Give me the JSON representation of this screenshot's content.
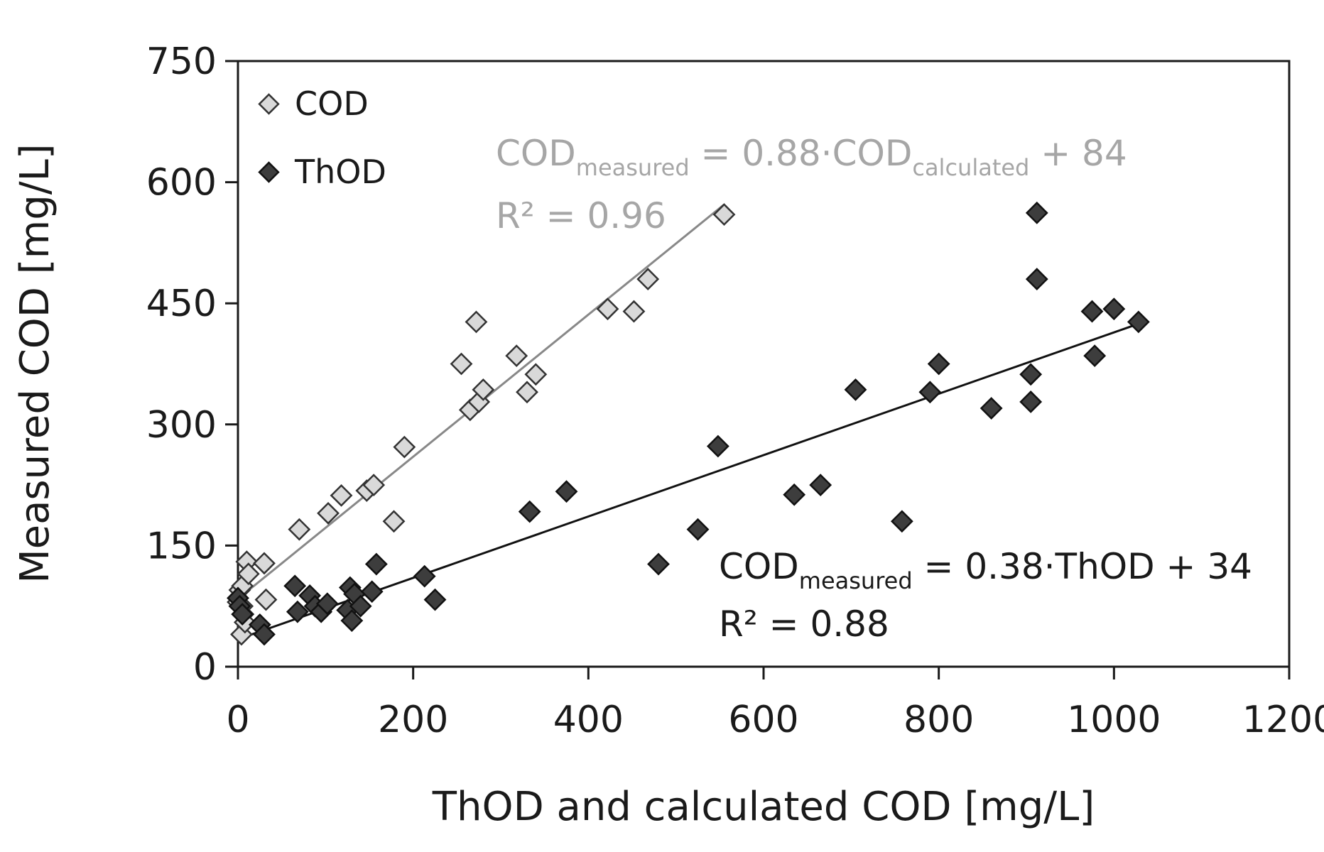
{
  "chart_data": {
    "type": "scatter",
    "xlabel": "ThOD and calculated COD [mg/L]",
    "ylabel": "Measured COD [mg/L]",
    "xlim": [
      0,
      1200
    ],
    "ylim": [
      0,
      750
    ],
    "xticks": [
      0,
      200,
      400,
      600,
      800,
      1000,
      1200
    ],
    "yticks": [
      0,
      150,
      300,
      450,
      600,
      750
    ],
    "grid": false,
    "legend_position": "top-left",
    "series": [
      {
        "name": "COD",
        "marker": "diamond",
        "fill": "#d9d9d9",
        "stroke": "#333333",
        "points": [
          [
            0,
            80
          ],
          [
            2,
            95
          ],
          [
            4,
            40
          ],
          [
            5,
            75
          ],
          [
            6,
            65
          ],
          [
            8,
            55
          ],
          [
            5,
            100
          ],
          [
            10,
            130
          ],
          [
            12,
            115
          ],
          [
            30,
            128
          ],
          [
            32,
            83
          ],
          [
            70,
            170
          ],
          [
            103,
            190
          ],
          [
            118,
            212
          ],
          [
            147,
            218
          ],
          [
            155,
            225
          ],
          [
            178,
            180
          ],
          [
            190,
            272
          ],
          [
            255,
            375
          ],
          [
            265,
            318
          ],
          [
            272,
            427
          ],
          [
            275,
            328
          ],
          [
            280,
            343
          ],
          [
            318,
            385
          ],
          [
            330,
            340
          ],
          [
            340,
            362
          ],
          [
            422,
            443
          ],
          [
            452,
            440
          ],
          [
            468,
            480
          ],
          [
            555,
            560
          ]
        ]
      },
      {
        "name": "ThOD",
        "marker": "diamond",
        "fill": "#3d3d3d",
        "stroke": "#111111",
        "points": [
          [
            0,
            85
          ],
          [
            2,
            75
          ],
          [
            5,
            65
          ],
          [
            25,
            52
          ],
          [
            30,
            40
          ],
          [
            65,
            100
          ],
          [
            68,
            68
          ],
          [
            82,
            88
          ],
          [
            88,
            75
          ],
          [
            95,
            68
          ],
          [
            102,
            78
          ],
          [
            125,
            70
          ],
          [
            128,
            98
          ],
          [
            130,
            57
          ],
          [
            133,
            90
          ],
          [
            140,
            75
          ],
          [
            153,
            93
          ],
          [
            158,
            127
          ],
          [
            213,
            112
          ],
          [
            225,
            83
          ],
          [
            333,
            192
          ],
          [
            375,
            217
          ],
          [
            480,
            127
          ],
          [
            525,
            170
          ],
          [
            548,
            273
          ],
          [
            635,
            213
          ],
          [
            665,
            225
          ],
          [
            705,
            343
          ],
          [
            758,
            180
          ],
          [
            790,
            340
          ],
          [
            800,
            375
          ],
          [
            860,
            320
          ],
          [
            905,
            362
          ],
          [
            905,
            328
          ],
          [
            912,
            562
          ],
          [
            912,
            480
          ],
          [
            975,
            440
          ],
          [
            978,
            385
          ],
          [
            1000,
            443
          ],
          [
            1028,
            427
          ]
        ]
      }
    ],
    "trendlines": [
      {
        "series": "COD",
        "slope": 0.88,
        "intercept": 84,
        "x_range": [
          0,
          555
        ],
        "color": "#888888"
      },
      {
        "series": "ThOD",
        "slope": 0.38,
        "intercept": 34,
        "x_range": [
          15,
          1028
        ],
        "color": "#111111"
      }
    ],
    "annotations": [
      {
        "series": "COD",
        "color": "#a6a6a6",
        "lhs_main": "COD",
        "lhs_sub": "measured",
        "mid": " = 0.88·",
        "rhs_main": "COD",
        "rhs_sub": "calculated",
        "tail": " + 84",
        "r2": "R² = 0.96"
      },
      {
        "series": "ThOD",
        "color": "#1a1a1a",
        "lhs_main": "COD",
        "lhs_sub": "measured",
        "mid": " = 0.38·ThOD + 34",
        "rhs_main": "",
        "rhs_sub": "",
        "tail": "",
        "r2": "R² = 0.88"
      }
    ]
  }
}
